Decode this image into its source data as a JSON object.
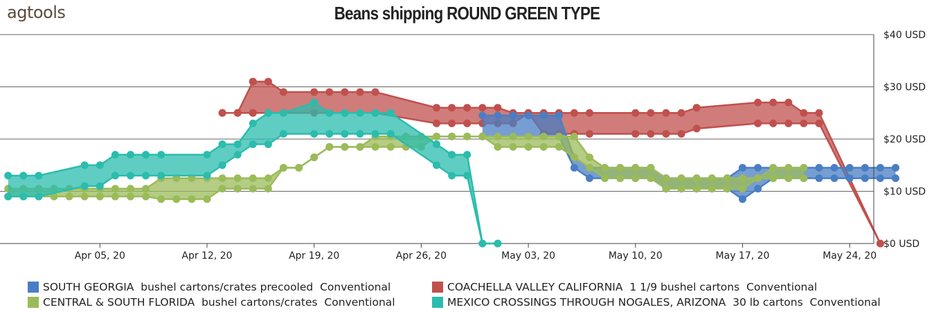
{
  "brand": "agtools",
  "chart_data": {
    "type": "area",
    "title": "Beans shipping ROUND GREEN TYPE",
    "x_axis": {
      "type": "date",
      "range": [
        "2020-03-30",
        "2020-05-28"
      ],
      "ticks": [
        "2020-04-05",
        "2020-04-12",
        "2020-04-19",
        "2020-04-26",
        "2020-05-03",
        "2020-05-10",
        "2020-05-17",
        "2020-05-24"
      ],
      "tick_labels": [
        "Apr 05, 20",
        "Apr 12, 20",
        "Apr 19, 20",
        "Apr 26, 20",
        "May 03, 20",
        "May 10, 20",
        "May 17, 20",
        "May 24, 20"
      ]
    },
    "y_axis": {
      "position": "right",
      "range": [
        0,
        40
      ],
      "ticks": [
        0,
        10,
        20,
        30,
        40
      ],
      "tick_labels": [
        "$0 USD",
        "$10 USD",
        "$20 USD",
        "$30 USD",
        "$40 USD"
      ]
    },
    "grid": true,
    "legend_position": "bottom",
    "series": [
      {
        "name": "SOUTH GEORGIA  bushel cartons/crates precooled  Conventional",
        "color": "#4a7ec3",
        "x": [
          "2020-04-30",
          "2020-05-01",
          "2020-05-02",
          "2020-05-03",
          "2020-05-04",
          "2020-05-05",
          "2020-05-06",
          "2020-05-07",
          "2020-05-08",
          "2020-05-09",
          "2020-05-10",
          "2020-05-11",
          "2020-05-12",
          "2020-05-13",
          "2020-05-14",
          "2020-05-15",
          "2020-05-16",
          "2020-05-17",
          "2020-05-18",
          "2020-05-19",
          "2020-05-20",
          "2020-05-21",
          "2020-05-22",
          "2020-05-23",
          "2020-05-24",
          "2020-05-25",
          "2020-05-26",
          "2020-05-27"
        ],
        "high": [
          24.5,
          24.5,
          24.5,
          24.5,
          24.5,
          24.5,
          16.5,
          14.5,
          14.5,
          14.5,
          14.5,
          14.5,
          12.5,
          12.5,
          12.5,
          12.5,
          12.5,
          14.5,
          14.5,
          14.5,
          14.5,
          14.5,
          14.5,
          14.5,
          14.5,
          14.5,
          14.5,
          14.5
        ],
        "low": [
          20.5,
          20.5,
          20.5,
          20.5,
          20.5,
          20.5,
          14.5,
          12.5,
          12.5,
          12.5,
          12.5,
          12.5,
          10.5,
          10.5,
          10.5,
          10.5,
          10.5,
          8.5,
          10.5,
          12.5,
          12.5,
          12.5,
          12.5,
          12.5,
          12.5,
          12.5,
          12.5,
          12.5
        ]
      },
      {
        "name": "COACHELLA VALLEY CALIFORNIA  1 1/9 bushel cartons  Conventional",
        "color": "#c0504d",
        "x": [
          "2020-04-13",
          "2020-04-14",
          "2020-04-15",
          "2020-04-15",
          "2020-04-16",
          "2020-04-17",
          "2020-04-19",
          "2020-04-20",
          "2020-04-21",
          "2020-04-22",
          "2020-04-23",
          "2020-04-27",
          "2020-04-28",
          "2020-04-29",
          "2020-04-30",
          "2020-05-01",
          "2020-05-02",
          "2020-05-03",
          "2020-05-04",
          "2020-05-05",
          "2020-05-06",
          "2020-05-07",
          "2020-05-10",
          "2020-05-11",
          "2020-05-12",
          "2020-05-13",
          "2020-05-14",
          "2020-05-18",
          "2020-05-19",
          "2020-05-20",
          "2020-05-21",
          "2020-05-22",
          "2020-05-26"
        ],
        "high": [
          25,
          25,
          31,
          31,
          31,
          29,
          29,
          29,
          29,
          29,
          29,
          26,
          26,
          26,
          26,
          26,
          25,
          25,
          25,
          25,
          25,
          25,
          25,
          25,
          25,
          25,
          26,
          27,
          27,
          27,
          25,
          25,
          0
        ],
        "low": [
          25,
          25,
          25,
          25,
          25,
          25,
          25,
          25,
          25,
          25,
          25,
          23,
          23,
          23,
          23,
          23,
          23,
          25,
          21,
          21,
          21,
          21,
          21,
          21,
          21,
          21,
          22,
          23,
          23,
          23,
          23,
          23,
          0
        ]
      },
      {
        "name": "CENTRAL & SOUTH FLORIDA  bushel cartons/crates  Conventional",
        "color": "#9bbb59",
        "x": [
          "2020-03-30",
          "2020-03-31",
          "2020-04-01",
          "2020-04-02",
          "2020-04-03",
          "2020-04-04",
          "2020-04-05",
          "2020-04-06",
          "2020-04-07",
          "2020-04-08",
          "2020-04-09",
          "2020-04-10",
          "2020-04-11",
          "2020-04-12",
          "2020-04-13",
          "2020-04-14",
          "2020-04-15",
          "2020-04-16",
          "2020-04-17",
          "2020-04-18",
          "2020-04-19",
          "2020-04-20",
          "2020-04-21",
          "2020-04-22",
          "2020-04-23",
          "2020-04-24",
          "2020-04-25",
          "2020-04-26",
          "2020-04-27",
          "2020-04-28",
          "2020-04-29",
          "2020-04-30",
          "2020-05-01",
          "2020-05-02",
          "2020-05-03",
          "2020-05-04",
          "2020-05-05",
          "2020-05-06",
          "2020-05-07",
          "2020-05-08",
          "2020-05-09",
          "2020-05-10",
          "2020-05-11",
          "2020-05-12",
          "2020-05-13",
          "2020-05-14",
          "2020-05-15",
          "2020-05-16",
          "2020-05-17",
          "2020-05-18",
          "2020-05-19",
          "2020-05-20",
          "2020-05-21"
        ],
        "high": [
          10.5,
          10.5,
          10.5,
          10.5,
          10.5,
          10.5,
          10.5,
          10.5,
          10.5,
          10.5,
          12.5,
          12.5,
          12.5,
          12.5,
          12.5,
          12.5,
          12.5,
          12.5,
          14.5,
          14.5,
          16.5,
          18.5,
          18.5,
          18.5,
          20.5,
          20.5,
          20.5,
          20.5,
          20.5,
          20.5,
          20.5,
          20.5,
          20.5,
          20.5,
          20.5,
          20.5,
          20.5,
          20.5,
          16.5,
          14.5,
          14.5,
          14.5,
          14.5,
          12.5,
          12.5,
          12.5,
          12.5,
          12.5,
          12.5,
          12.5,
          14.5,
          14.5,
          14.5
        ],
        "low": [
          9,
          9,
          9,
          9,
          9,
          9,
          9,
          9,
          9,
          9,
          8.5,
          8.5,
          8.5,
          8.5,
          10.5,
          10.5,
          10.5,
          10.5,
          14.5,
          14.5,
          16.5,
          18.5,
          18.5,
          18.5,
          18.5,
          18.5,
          18.5,
          18.5,
          20.5,
          20.5,
          20.5,
          20.5,
          18.5,
          18.5,
          18.5,
          18.5,
          18.5,
          16.5,
          14.5,
          12.5,
          12.5,
          12.5,
          12.5,
          10.5,
          10.5,
          10.5,
          10.5,
          10.5,
          10.5,
          12.5,
          12.5,
          12.5,
          12.5
        ]
      },
      {
        "name": "MEXICO CROSSINGS THROUGH NOGALES, ARIZONA  30 lb cartons  Conventional",
        "color": "#2bbcad",
        "x": [
          "2020-03-30",
          "2020-03-31",
          "2020-04-01",
          "2020-04-04",
          "2020-04-05",
          "2020-04-06",
          "2020-04-07",
          "2020-04-08",
          "2020-04-09",
          "2020-04-12",
          "2020-04-13",
          "2020-04-14",
          "2020-04-15",
          "2020-04-16",
          "2020-04-17",
          "2020-04-19",
          "2020-04-20",
          "2020-04-21",
          "2020-04-22",
          "2020-04-23",
          "2020-04-24",
          "2020-04-27",
          "2020-04-28",
          "2020-04-29",
          "2020-04-30",
          "2020-05-01"
        ],
        "high": [
          13,
          13,
          13,
          15,
          15,
          17,
          17,
          17,
          17,
          17,
          19,
          19,
          23,
          25,
          25,
          27,
          25,
          25,
          25,
          25,
          25,
          19,
          17,
          17,
          0,
          0
        ],
        "low": [
          9,
          9,
          9,
          11,
          11,
          13,
          13,
          13,
          13,
          13,
          15,
          17,
          19,
          19,
          21,
          21,
          21,
          21,
          21,
          21,
          21,
          15,
          13,
          13,
          0,
          0
        ]
      }
    ]
  }
}
